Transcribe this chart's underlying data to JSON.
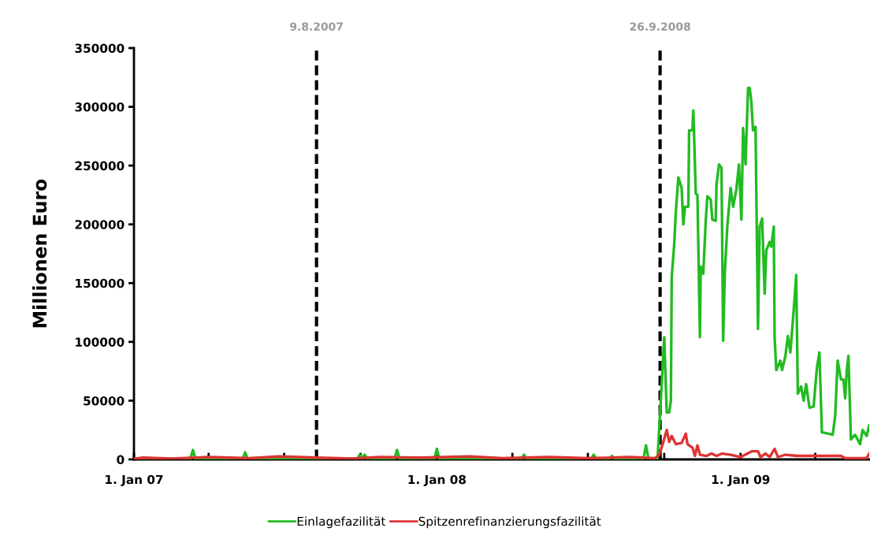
{
  "chart_data": {
    "type": "line",
    "ylabel": "Millionen Euro",
    "xlim": [
      "2007-01-01",
      "2009-06-05"
    ],
    "ylim": [
      0,
      350000
    ],
    "yticks": [
      0,
      50000,
      100000,
      150000,
      200000,
      250000,
      300000,
      350000
    ],
    "xticks": [
      {
        "value": "2007-01-01",
        "label": "1. Jan 07"
      },
      {
        "value": "2007-04-01",
        "label": null
      },
      {
        "value": "2007-07-01",
        "label": null
      },
      {
        "value": "2007-10-01",
        "label": null
      },
      {
        "value": "2008-01-01",
        "label": "1. Jan 08"
      },
      {
        "value": "2008-04-01",
        "label": null
      },
      {
        "value": "2008-07-01",
        "label": null
      },
      {
        "value": "2008-10-01",
        "label": null
      },
      {
        "value": "2009-01-01",
        "label": "1. Jan 09"
      },
      {
        "value": "2009-04-01",
        "label": null
      }
    ],
    "grid": false,
    "legend": "bottom",
    "marker": "none",
    "line_style": "solid",
    "ref_lines": [
      {
        "axis": "x",
        "value": "2007-08-09",
        "label": "9.8.2007",
        "color": "#000000",
        "line_style": "dashed"
      },
      {
        "axis": "x",
        "value": "2008-09-26",
        "label": "26.9.2008",
        "color": "#000000",
        "line_style": "dashed"
      }
    ],
    "series": [
      {
        "name": "Einlagefazilität",
        "color": "#22bb22",
        "x": [
          "2007-01-01",
          "2007-03-01",
          "2007-03-10",
          "2007-03-13",
          "2007-03-16",
          "2007-05-12",
          "2007-05-15",
          "2007-05-18",
          "2007-08-09",
          "2007-09-27",
          "2007-09-30",
          "2007-10-03",
          "2007-10-06",
          "2007-10-09",
          "2007-11-11",
          "2007-11-14",
          "2007-11-17",
          "2007-12-29",
          "2008-01-01",
          "2008-01-04",
          "2008-04-12",
          "2008-04-15",
          "2008-04-18",
          "2008-07-05",
          "2008-07-08",
          "2008-07-11",
          "2008-07-27",
          "2008-07-30",
          "2008-08-02",
          "2008-09-06",
          "2008-09-09",
          "2008-09-12",
          "2008-09-23",
          "2008-10-01",
          "2008-10-04",
          "2008-10-07",
          "2008-10-09",
          "2008-10-10",
          "2008-10-13",
          "2008-10-15",
          "2008-10-18",
          "2008-10-22",
          "2008-10-24",
          "2008-10-26",
          "2008-10-30",
          "2008-10-31",
          "2008-11-04",
          "2008-11-05",
          "2008-11-06",
          "2008-11-08",
          "2008-11-10",
          "2008-11-13",
          "2008-11-14",
          "2008-11-17",
          "2008-11-20",
          "2008-11-22",
          "2008-11-26",
          "2008-11-28",
          "2008-12-02",
          "2008-12-03",
          "2008-12-06",
          "2008-12-09",
          "2008-12-11",
          "2008-12-13",
          "2008-12-16",
          "2008-12-20",
          "2008-12-23",
          "2008-12-27",
          "2008-12-30",
          "2009-01-02",
          "2009-01-04",
          "2009-01-07",
          "2009-01-10",
          "2009-01-12",
          "2009-01-14",
          "2009-01-16",
          "2009-01-19",
          "2009-01-22",
          "2009-01-24",
          "2009-01-27",
          "2009-01-30",
          "2009-02-01",
          "2009-02-05",
          "2009-02-07",
          "2009-02-10",
          "2009-02-11",
          "2009-02-13",
          "2009-02-18",
          "2009-02-20",
          "2009-02-24",
          "2009-02-27",
          "2009-03-02",
          "2009-03-07",
          "2009-03-09",
          "2009-03-11",
          "2009-03-15",
          "2009-03-18",
          "2009-03-21",
          "2009-03-25",
          "2009-03-30",
          "2009-04-03",
          "2009-04-06",
          "2009-04-09",
          "2009-04-16",
          "2009-04-22",
          "2009-04-25",
          "2009-04-28",
          "2009-05-02",
          "2009-05-05",
          "2009-05-07",
          "2009-05-09",
          "2009-05-11",
          "2009-05-14",
          "2009-05-19",
          "2009-05-25",
          "2009-05-28",
          "2009-06-02",
          "2009-06-05"
        ],
        "values": [
          500,
          500,
          500,
          8000,
          500,
          500,
          6000,
          500,
          500,
          500,
          4000,
          1000,
          4000,
          500,
          500,
          8000,
          500,
          500,
          9000,
          500,
          500,
          4000,
          500,
          500,
          4000,
          500,
          500,
          3000,
          500,
          500,
          12000,
          500,
          1000,
          104000,
          40000,
          40000,
          50000,
          155000,
          183000,
          211000,
          240000,
          231000,
          200000,
          215000,
          215000,
          280000,
          280000,
          297000,
          275000,
          226000,
          225000,
          104000,
          164000,
          158000,
          203000,
          224000,
          221000,
          204000,
          203000,
          234000,
          251000,
          248000,
          101000,
          159000,
          198000,
          231000,
          215000,
          230000,
          251000,
          204000,
          282000,
          251000,
          316000,
          316000,
          304000,
          280000,
          283000,
          111000,
          198000,
          205000,
          141000,
          178000,
          185000,
          181000,
          198000,
          104000,
          76000,
          84000,
          76000,
          88000,
          105000,
          91000,
          136000,
          157000,
          56000,
          62000,
          50000,
          64000,
          44000,
          45000,
          78000,
          91000,
          23000,
          22000,
          21000,
          37000,
          84000,
          68000,
          68000,
          52000,
          76000,
          88000,
          17000,
          21000,
          13000,
          25000,
          20000,
          29000
        ]
      },
      {
        "name": "Spitzenrefinanzierungsfazilität",
        "color": "#dd3333",
        "x": [
          "2007-01-01",
          "2007-01-12",
          "2007-02-15",
          "2007-04-01",
          "2007-05-20",
          "2007-06-25",
          "2007-08-09",
          "2007-09-20",
          "2007-10-25",
          "2007-12-15",
          "2008-02-10",
          "2008-03-20",
          "2008-05-15",
          "2008-07-01",
          "2008-08-20",
          "2008-09-20",
          "2008-09-25",
          "2008-09-30",
          "2008-10-04",
          "2008-10-07",
          "2008-10-10",
          "2008-10-15",
          "2008-10-22",
          "2008-10-27",
          "2008-10-29",
          "2008-11-04",
          "2008-11-07",
          "2008-11-10",
          "2008-11-13",
          "2008-11-21",
          "2008-11-27",
          "2008-12-03",
          "2008-12-10",
          "2008-12-20",
          "2009-01-01",
          "2009-01-15",
          "2009-01-22",
          "2009-01-25",
          "2009-01-31",
          "2009-02-05",
          "2009-02-11",
          "2009-02-15",
          "2009-02-24",
          "2009-03-10",
          "2009-03-26",
          "2009-04-08",
          "2009-05-02",
          "2009-05-07",
          "2009-06-02",
          "2009-06-05"
        ],
        "values": [
          500,
          1500,
          800,
          2000,
          1000,
          2500,
          1500,
          800,
          2000,
          1500,
          2500,
          1000,
          2000,
          1000,
          2000,
          1000,
          4000,
          15000,
          25000,
          15000,
          20000,
          13000,
          14000,
          22000,
          13000,
          10000,
          3000,
          12000,
          4000,
          3000,
          5000,
          3000,
          5000,
          4000,
          2000,
          7000,
          7000,
          2000,
          5000,
          2000,
          9000,
          2000,
          4000,
          3000,
          3000,
          3000,
          3000,
          1000,
          1000,
          5000
        ]
      }
    ]
  }
}
